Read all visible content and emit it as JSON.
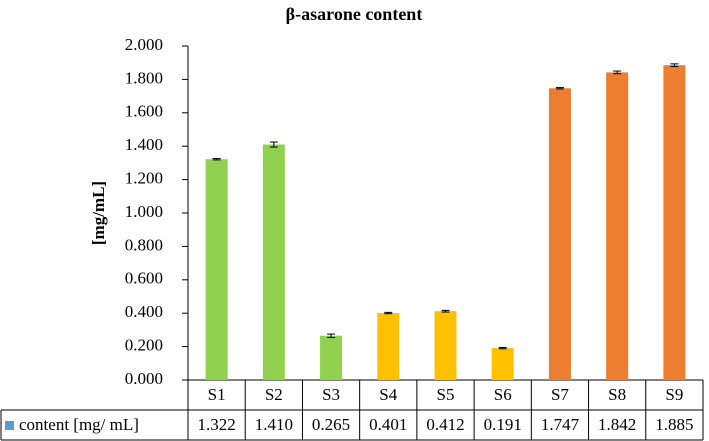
{
  "chart_data": {
    "type": "bar",
    "title": "β-asarone content",
    "y_label": "[mg/mL]",
    "categories": [
      "S1",
      "S2",
      "S3",
      "S4",
      "S5",
      "S6",
      "S7",
      "S8",
      "S9"
    ],
    "series": [
      {
        "name": "content [mg/ mL]",
        "color": "#5b9bd5",
        "bar_colors": [
          "#92d050",
          "#92d050",
          "#92d050",
          "#ffc000",
          "#ffc000",
          "#ffc000",
          "#ed7d31",
          "#ed7d31",
          "#ed7d31"
        ],
        "values": [
          1.322,
          1.41,
          0.265,
          0.401,
          0.412,
          0.191,
          1.747,
          1.842,
          1.885
        ],
        "value_labels": [
          "1.322",
          "1.410",
          "0.265",
          "0.401",
          "0.412",
          "0.191",
          "1.747",
          "1.842",
          "1.885"
        ],
        "errors": [
          0.004,
          0.015,
          0.01,
          0.004,
          0.005,
          0.004,
          0.004,
          0.008,
          0.008
        ]
      }
    ],
    "ylim": [
      0,
      2
    ],
    "yticks": [
      {
        "value": 0,
        "label": "0.000"
      },
      {
        "value": 0.2,
        "label": "0.200"
      },
      {
        "value": 0.4,
        "label": "0.400"
      },
      {
        "value": 0.6,
        "label": "0.600"
      },
      {
        "value": 0.8,
        "label": "0.800"
      },
      {
        "value": 1,
        "label": "1.000"
      },
      {
        "value": 1.2,
        "label": "1.200"
      },
      {
        "value": 1.4,
        "label": "1.400"
      },
      {
        "value": 1.6,
        "label": "1.600"
      },
      {
        "value": 1.8,
        "label": "1.800"
      },
      {
        "value": 2,
        "label": "2.000"
      }
    ],
    "grid": false,
    "data_table": true
  }
}
